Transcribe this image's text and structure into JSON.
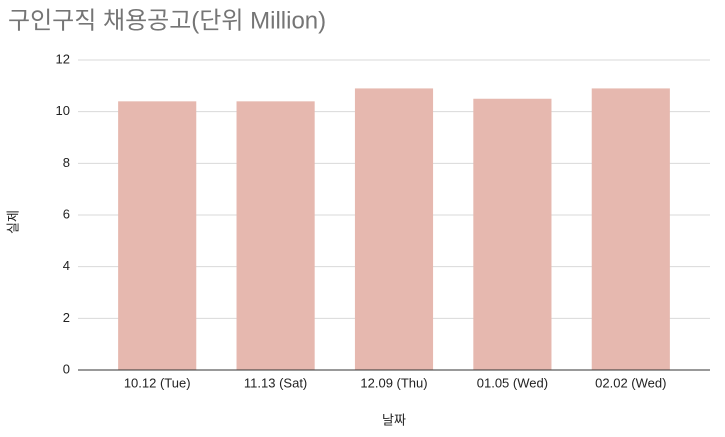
{
  "chart_data": {
    "type": "bar",
    "title": "구인구직 채용공고(단위 Million)",
    "x_label": "날짜",
    "y_label": "실제",
    "categories": [
      "10.12 (Tue)",
      "11.13 (Sat)",
      "12.09 (Thu)",
      "01.05 (Wed)",
      "02.02 (Wed)"
    ],
    "values": [
      10.4,
      10.4,
      10.9,
      10.5,
      10.9
    ],
    "color": "#e6b8af",
    "ylim": [
      0,
      12
    ],
    "yticks": [
      0,
      2,
      4,
      6,
      8,
      10,
      12
    ],
    "grid": true
  }
}
